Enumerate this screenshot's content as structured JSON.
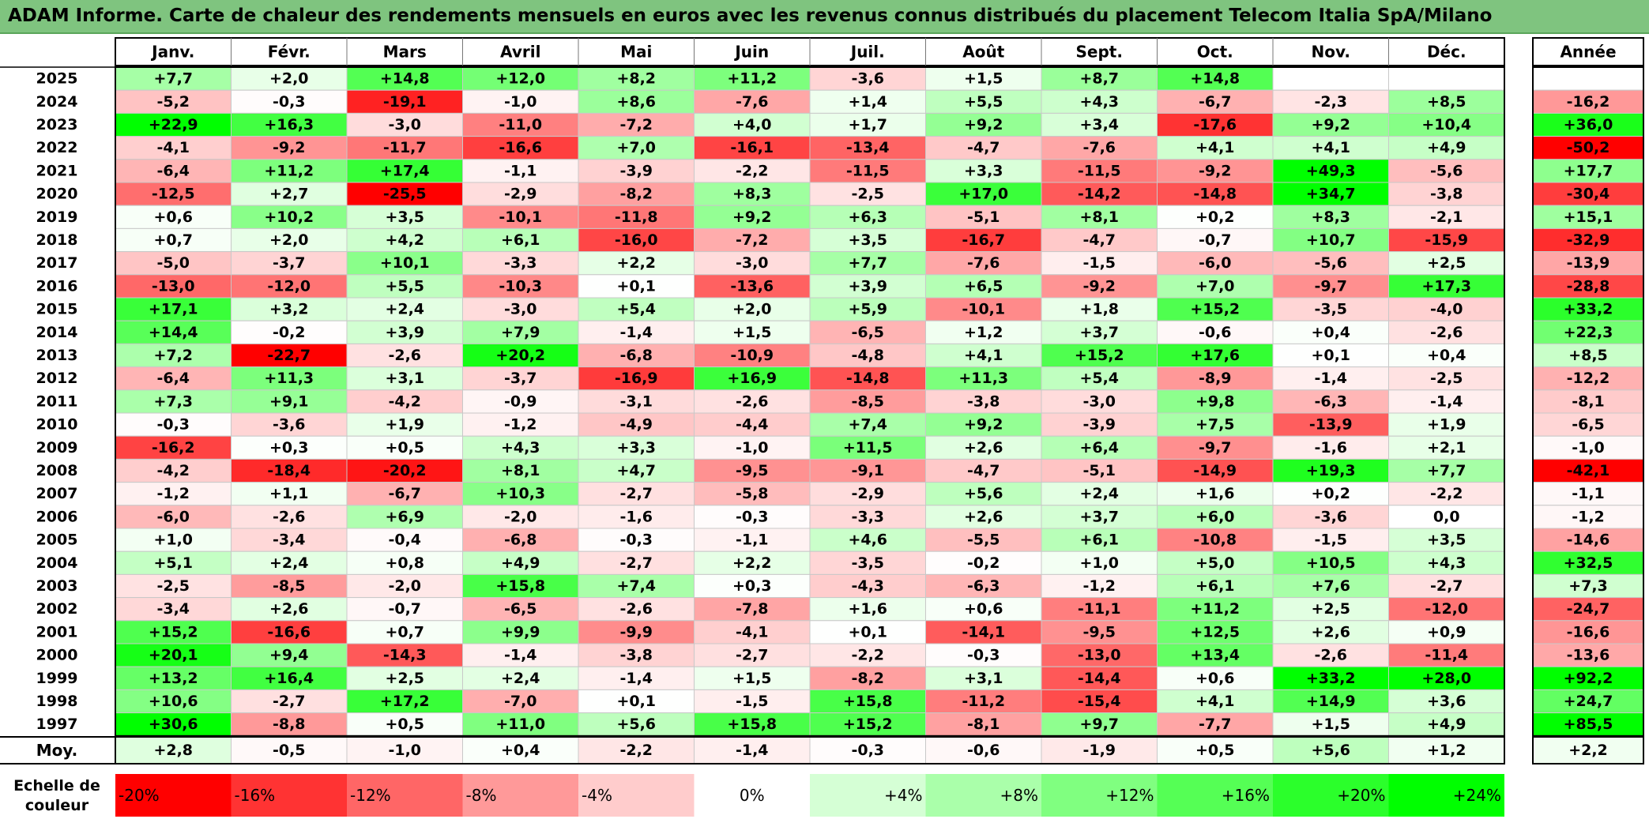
{
  "title": "ADAM Informe. Carte de chaleur des rendements mensuels en euros avec les revenus connus distribués du placement Telecom Italia SpA/Milano",
  "chart_data": {
    "type": "heatmap",
    "months": [
      "Janv.",
      "Févr.",
      "Mars",
      "Avril",
      "Mai",
      "Juin",
      "Juil.",
      "Août",
      "Sept.",
      "Oct.",
      "Nov.",
      "Déc."
    ],
    "year_label": "Année",
    "rows": [
      {
        "year": "2025",
        "values": [
          "+7,7",
          "+2,0",
          "+14,8",
          "+12,0",
          "+8,2",
          "+11,2",
          "-3,6",
          "+1,5",
          "+8,7",
          "+14,8",
          "",
          ""
        ],
        "annual": ""
      },
      {
        "year": "2024",
        "values": [
          "-5,2",
          "-0,3",
          "-19,1",
          "-1,0",
          "+8,6",
          "-7,6",
          "+1,4",
          "+5,5",
          "+4,3",
          "-6,7",
          "-2,3",
          "+8,5"
        ],
        "annual": "-16,2"
      },
      {
        "year": "2023",
        "values": [
          "+22,9",
          "+16,3",
          "-3,0",
          "-11,0",
          "-7,2",
          "+4,0",
          "+1,7",
          "+9,2",
          "+3,4",
          "-17,6",
          "+9,2",
          "+10,4"
        ],
        "annual": "+36,0"
      },
      {
        "year": "2022",
        "values": [
          "-4,1",
          "-9,2",
          "-11,7",
          "-16,6",
          "+7,0",
          "-16,1",
          "-13,4",
          "-4,7",
          "-7,6",
          "+4,1",
          "+4,1",
          "+4,9"
        ],
        "annual": "-50,2"
      },
      {
        "year": "2021",
        "values": [
          "-6,4",
          "+11,2",
          "+17,4",
          "-1,1",
          "-3,9",
          "-2,2",
          "-11,5",
          "+3,3",
          "-11,5",
          "-9,2",
          "+49,3",
          "-5,6"
        ],
        "annual": "+17,7"
      },
      {
        "year": "2020",
        "values": [
          "-12,5",
          "+2,7",
          "-25,5",
          "-2,9",
          "-8,2",
          "+8,3",
          "-2,5",
          "+17,0",
          "-14,2",
          "-14,8",
          "+34,7",
          "-3,8"
        ],
        "annual": "-30,4"
      },
      {
        "year": "2019",
        "values": [
          "+0,6",
          "+10,2",
          "+3,5",
          "-10,1",
          "-11,8",
          "+9,2",
          "+6,3",
          "-5,1",
          "+8,1",
          "+0,2",
          "+8,3",
          "-2,1"
        ],
        "annual": "+15,1"
      },
      {
        "year": "2018",
        "values": [
          "+0,7",
          "+2,0",
          "+4,2",
          "+6,1",
          "-16,0",
          "-7,2",
          "+3,5",
          "-16,7",
          "-4,7",
          "-0,7",
          "+10,7",
          "-15,9"
        ],
        "annual": "-32,9"
      },
      {
        "year": "2017",
        "values": [
          "-5,0",
          "-3,7",
          "+10,1",
          "-3,3",
          "+2,2",
          "-3,0",
          "+7,7",
          "-7,6",
          "-1,5",
          "-6,0",
          "-5,6",
          "+2,5"
        ],
        "annual": "-13,9"
      },
      {
        "year": "2016",
        "values": [
          "-13,0",
          "-12,0",
          "+5,5",
          "-10,3",
          "+0,1",
          "-13,6",
          "+3,9",
          "+6,5",
          "-9,2",
          "+7,0",
          "-9,7",
          "+17,3"
        ],
        "annual": "-28,8"
      },
      {
        "year": "2015",
        "values": [
          "+17,1",
          "+3,2",
          "+2,4",
          "-3,0",
          "+5,4",
          "+2,0",
          "+5,9",
          "-10,1",
          "+1,8",
          "+15,2",
          "-3,5",
          "-4,0"
        ],
        "annual": "+33,2"
      },
      {
        "year": "2014",
        "values": [
          "+14,4",
          "-0,2",
          "+3,9",
          "+7,9",
          "-1,4",
          "+1,5",
          "-6,5",
          "+1,2",
          "+3,7",
          "-0,6",
          "+0,4",
          "-2,6"
        ],
        "annual": "+22,3"
      },
      {
        "year": "2013",
        "values": [
          "+7,2",
          "-22,7",
          "-2,6",
          "+20,2",
          "-6,8",
          "-10,9",
          "-4,8",
          "+4,1",
          "+15,2",
          "+17,6",
          "+0,1",
          "+0,4"
        ],
        "annual": "+8,5"
      },
      {
        "year": "2012",
        "values": [
          "-6,4",
          "+11,3",
          "+3,1",
          "-3,7",
          "-16,9",
          "+16,9",
          "-14,8",
          "+11,3",
          "+5,4",
          "-8,9",
          "-1,4",
          "-2,5"
        ],
        "annual": "-12,2"
      },
      {
        "year": "2011",
        "values": [
          "+7,3",
          "+9,1",
          "-4,2",
          "-0,9",
          "-3,1",
          "-2,6",
          "-8,5",
          "-3,8",
          "-3,0",
          "+9,8",
          "-6,3",
          "-1,4"
        ],
        "annual": "-8,1"
      },
      {
        "year": "2010",
        "values": [
          "-0,3",
          "-3,6",
          "+1,9",
          "-1,2",
          "-4,9",
          "-4,4",
          "+7,4",
          "+9,2",
          "-3,9",
          "+7,5",
          "-13,9",
          "+1,9"
        ],
        "annual": "-6,5"
      },
      {
        "year": "2009",
        "values": [
          "-16,2",
          "+0,3",
          "+0,5",
          "+4,3",
          "+3,3",
          "-1,0",
          "+11,5",
          "+2,6",
          "+6,4",
          "-9,7",
          "-1,6",
          "+2,1"
        ],
        "annual": "-1,0"
      },
      {
        "year": "2008",
        "values": [
          "-4,2",
          "-18,4",
          "-20,2",
          "+8,1",
          "+4,7",
          "-9,5",
          "-9,1",
          "-4,7",
          "-5,1",
          "-14,9",
          "+19,3",
          "+7,7"
        ],
        "annual": "-42,1"
      },
      {
        "year": "2007",
        "values": [
          "-1,2",
          "+1,1",
          "-6,7",
          "+10,3",
          "-2,7",
          "-5,8",
          "-2,9",
          "+5,6",
          "+2,4",
          "+1,6",
          "+0,2",
          "-2,2"
        ],
        "annual": "-1,1"
      },
      {
        "year": "2006",
        "values": [
          "-6,0",
          "-2,6",
          "+6,9",
          "-2,0",
          "-1,6",
          "-0,3",
          "-3,3",
          "+2,6",
          "+3,7",
          "+6,0",
          "-3,6",
          "0,0"
        ],
        "annual": "-1,2"
      },
      {
        "year": "2005",
        "values": [
          "+1,0",
          "-3,4",
          "-0,4",
          "-6,8",
          "-0,3",
          "-1,1",
          "+4,6",
          "-5,5",
          "+6,1",
          "-10,8",
          "-1,5",
          "+3,5"
        ],
        "annual": "-14,6"
      },
      {
        "year": "2004",
        "values": [
          "+5,1",
          "+2,4",
          "+0,8",
          "+4,9",
          "-2,7",
          "+2,2",
          "-3,5",
          "-0,2",
          "+1,0",
          "+5,0",
          "+10,5",
          "+4,3"
        ],
        "annual": "+32,5"
      },
      {
        "year": "2003",
        "values": [
          "-2,5",
          "-8,5",
          "-2,0",
          "+15,8",
          "+7,4",
          "+0,3",
          "-4,3",
          "-6,3",
          "-1,2",
          "+6,1",
          "+7,6",
          "-2,7"
        ],
        "annual": "+7,3"
      },
      {
        "year": "2002",
        "values": [
          "-3,4",
          "+2,6",
          "-0,7",
          "-6,5",
          "-2,6",
          "-7,8",
          "+1,6",
          "+0,6",
          "-11,1",
          "+11,2",
          "+2,5",
          "-12,0"
        ],
        "annual": "-24,7"
      },
      {
        "year": "2001",
        "values": [
          "+15,2",
          "-16,6",
          "+0,7",
          "+9,9",
          "-9,9",
          "-4,1",
          "+0,1",
          "-14,1",
          "-9,5",
          "+12,5",
          "+2,6",
          "+0,9"
        ],
        "annual": "-16,6"
      },
      {
        "year": "2000",
        "values": [
          "+20,1",
          "+9,4",
          "-14,3",
          "-1,4",
          "-3,8",
          "-2,7",
          "-2,2",
          "-0,3",
          "-13,0",
          "+13,4",
          "-2,6",
          "-11,4"
        ],
        "annual": "-13,6"
      },
      {
        "year": "1999",
        "values": [
          "+13,2",
          "+16,4",
          "+2,5",
          "+2,4",
          "-1,4",
          "+1,5",
          "-8,2",
          "+3,1",
          "-14,4",
          "+0,6",
          "+33,2",
          "+28,0"
        ],
        "annual": "+92,2"
      },
      {
        "year": "1998",
        "values": [
          "+10,6",
          "-2,7",
          "+17,2",
          "-7,0",
          "+0,1",
          "-1,5",
          "+15,8",
          "-11,2",
          "-15,4",
          "+4,1",
          "+14,9",
          "+3,6"
        ],
        "annual": "+24,7"
      },
      {
        "year": "1997",
        "values": [
          "+30,6",
          "-8,8",
          "+0,5",
          "+11,0",
          "+5,6",
          "+15,8",
          "+15,2",
          "-8,1",
          "+9,7",
          "-7,7",
          "+1,5",
          "+4,9"
        ],
        "annual": "+85,5"
      }
    ],
    "average": {
      "label": "Moy.",
      "values": [
        "+2,8",
        "-0,5",
        "-1,0",
        "+0,4",
        "-2,2",
        "-1,4",
        "-0,3",
        "-0,6",
        "-1,9",
        "+0,5",
        "+5,6",
        "+1,2"
      ],
      "annual": "+2,2"
    },
    "scale": {
      "label_line1": "Echelle de",
      "label_line2": "couleur",
      "stops": [
        "-20%",
        "-16%",
        "-12%",
        "-8%",
        "-4%",
        "0%",
        "+4%",
        "+8%",
        "+12%",
        "+16%",
        "+20%",
        "+24%"
      ]
    },
    "colors": {
      "negative_max": "#ff0000",
      "positive_max": "#00ff00",
      "neutral": "#ffffff",
      "title_bar": "#7fc47f"
    }
  }
}
